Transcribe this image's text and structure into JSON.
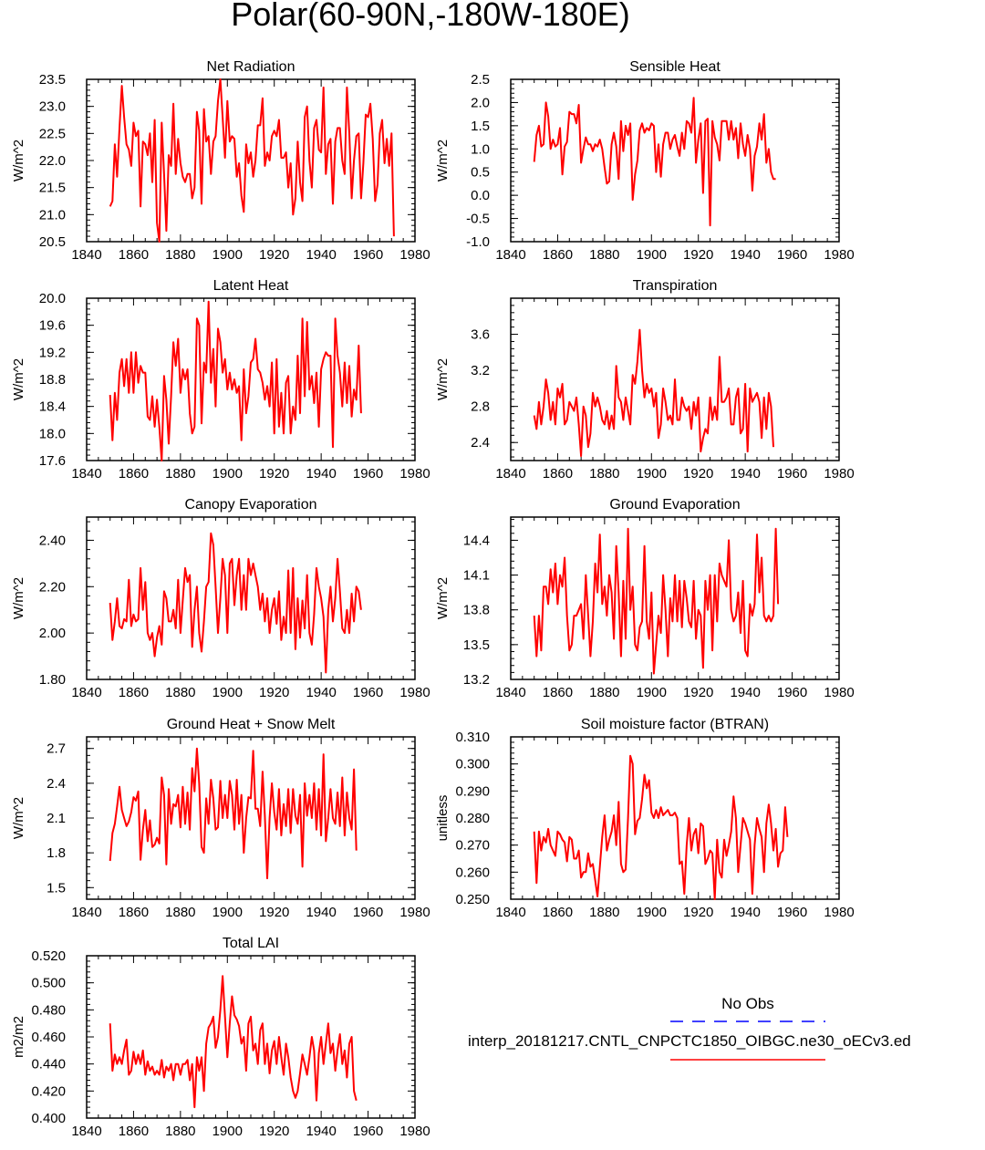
{
  "page_title": "Polar(60-90N,-180W-180E)",
  "colors": {
    "series": "#ff0000",
    "obs": "#0000ff",
    "axis": "#000000"
  },
  "x_ticks": [
    "1840",
    "1860",
    "1880",
    "1900",
    "1920",
    "1940",
    "1960",
    "1980"
  ],
  "legend": {
    "obs_label": "No Obs",
    "model_label": "interp_20181217.CNTL_CNPCTC1850_OIBGC.ne30_oECv3.ed"
  },
  "chart_data": [
    {
      "type": "line",
      "title": "Net Radiation",
      "ylabel": "W/m^2",
      "xlim": [
        1840,
        1980
      ],
      "ylim": [
        20.5,
        23.5
      ],
      "yticks": [
        "20.5",
        "21.0",
        "21.5",
        "22.0",
        "22.5",
        "23.0",
        "23.5"
      ],
      "x_start": 1850,
      "x_step": 1,
      "values": [
        21.15,
        21.25,
        22.3,
        21.7,
        22.6,
        23.38,
        22.8,
        22.3,
        22.2,
        21.9,
        22.7,
        22.45,
        22.55,
        21.15,
        22.35,
        22.3,
        22.1,
        22.5,
        21.6,
        22.75,
        20.85,
        20.5,
        22.7,
        21.75,
        20.7,
        22.1,
        21.9,
        23.05,
        21.75,
        22.4,
        21.95,
        21.7,
        21.6,
        21.75,
        21.75,
        21.3,
        21.5,
        22.9,
        22.55,
        21.2,
        22.95,
        22.35,
        22.45,
        21.75,
        22.35,
        22.45,
        23.1,
        23.5,
        22.8,
        22.05,
        23.1,
        22.35,
        22.45,
        22.4,
        21.7,
        21.95,
        21.35,
        21.05,
        22.3,
        21.95,
        22.15,
        21.7,
        22.0,
        22.65,
        22.65,
        23.15,
        21.9,
        22.15,
        22.0,
        22.45,
        22.55,
        22.45,
        22.75,
        22.05,
        22.05,
        22.15,
        21.5,
        21.95,
        21.0,
        21.3,
        22.35,
        21.6,
        21.25,
        22.8,
        23.0,
        22.0,
        21.5,
        22.6,
        22.75,
        22.2,
        22.15,
        23.35,
        21.75,
        22.3,
        22.4,
        21.2,
        22.35,
        22.6,
        22.6,
        22.0,
        21.75,
        23.35,
        22.5,
        21.3,
        22.0,
        22.45,
        22.5,
        21.3,
        21.95,
        22.85,
        22.8,
        23.05,
        22.4,
        21.25,
        21.55,
        22.5,
        22.75,
        21.95,
        22.4,
        21.9,
        22.5,
        20.6
      ]
    },
    {
      "type": "line",
      "title": "Sensible Heat",
      "ylabel": "W/m^2",
      "xlim": [
        1840,
        1980
      ],
      "ylim": [
        -1.0,
        2.5
      ],
      "yticks": [
        "-1.0",
        "-0.5",
        "0.0",
        "0.5",
        "1.0",
        "1.5",
        "2.0",
        "2.5"
      ],
      "x_start": 1850,
      "x_step": 1,
      "values": [
        0.72,
        1.3,
        1.5,
        1.05,
        1.1,
        2.0,
        1.7,
        1.0,
        1.2,
        1.05,
        1.1,
        1.45,
        0.45,
        1.05,
        1.15,
        1.8,
        1.75,
        1.75,
        1.55,
        1.95,
        0.7,
        1.0,
        1.25,
        1.1,
        1.1,
        0.95,
        1.1,
        1.05,
        1.2,
        1.0,
        0.6,
        0.25,
        0.3,
        1.1,
        1.35,
        1.05,
        0.35,
        1.6,
        0.95,
        1.5,
        1.3,
        1.55,
        -0.1,
        0.45,
        0.75,
        1.4,
        1.55,
        1.35,
        1.45,
        1.4,
        1.55,
        1.5,
        0.5,
        1.1,
        0.4,
        1.1,
        1.35,
        1.35,
        1.0,
        1.2,
        1.3,
        1.05,
        0.85,
        1.35,
        1.0,
        1.6,
        1.55,
        1.35,
        2.1,
        0.7,
        1.2,
        1.55,
        0.05,
        1.6,
        1.65,
        -0.65,
        1.6,
        1.25,
        1.1,
        0.75,
        1.6,
        1.6,
        1.6,
        1.2,
        1.6,
        1.2,
        1.45,
        0.8,
        1.55,
        1.1,
        0.85,
        1.3,
        1.0,
        0.1,
        0.85,
        1.05,
        1.55,
        1.2,
        1.75,
        0.7,
        1.0,
        0.5,
        0.35,
        0.35
      ]
    },
    {
      "type": "line",
      "title": "Latent Heat",
      "ylabel": "W/m^2",
      "xlim": [
        1840,
        1980
      ],
      "ylim": [
        17.6,
        20.0
      ],
      "yticks": [
        "17.6",
        "18.0",
        "18.4",
        "18.8",
        "19.2",
        "19.6",
        "20.0"
      ],
      "x_start": 1850,
      "x_step": 1,
      "values": [
        18.57,
        17.9,
        18.6,
        18.2,
        18.9,
        19.1,
        18.7,
        19.1,
        18.6,
        19.2,
        18.6,
        19.2,
        18.75,
        19.0,
        18.9,
        18.9,
        18.25,
        18.2,
        18.55,
        18.1,
        18.5,
        18.1,
        17.6,
        18.85,
        18.5,
        17.85,
        18.55,
        19.35,
        19.0,
        19.4,
        18.6,
        18.95,
        18.8,
        18.95,
        18.3,
        18.0,
        18.1,
        19.7,
        19.6,
        18.15,
        19.05,
        18.9,
        19.95,
        18.75,
        19.25,
        18.4,
        19.55,
        19.35,
        18.9,
        19.1,
        18.65,
        18.9,
        18.65,
        18.8,
        18.6,
        18.7,
        17.9,
        18.95,
        18.3,
        18.55,
        19.05,
        19.1,
        19.4,
        18.95,
        18.9,
        18.75,
        18.5,
        18.7,
        18.4,
        19.05,
        18.0,
        19.1,
        18.1,
        18.6,
        18.0,
        18.75,
        18.85,
        18.0,
        18.4,
        18.2,
        19.15,
        18.3,
        19.7,
        18.55,
        19.65,
        18.65,
        18.85,
        18.45,
        18.9,
        18.1,
        18.95,
        19.1,
        19.2,
        19.15,
        19.15,
        17.8,
        19.7,
        19.15,
        18.9,
        18.4,
        19.05,
        18.45,
        19.0,
        18.25,
        18.65,
        18.5,
        19.3,
        18.3
      ]
    },
    {
      "type": "line",
      "title": "Transpiration",
      "ylabel": "W/m^2",
      "xlim": [
        1840,
        1980
      ],
      "ylim": [
        2.2,
        4.0
      ],
      "yticks": [
        "2.4",
        "2.8",
        "3.2",
        "3.6"
      ],
      "x_start": 1850,
      "x_step": 1,
      "values": [
        2.7,
        2.55,
        2.85,
        2.6,
        2.8,
        3.1,
        2.95,
        2.65,
        2.85,
        2.6,
        3.0,
        2.9,
        3.05,
        2.6,
        2.65,
        2.85,
        2.8,
        2.75,
        2.9,
        2.6,
        2.25,
        2.8,
        2.7,
        2.35,
        2.5,
        2.95,
        2.8,
        2.9,
        2.8,
        2.65,
        2.6,
        2.75,
        2.55,
        2.7,
        2.55,
        3.25,
        2.9,
        2.85,
        2.65,
        2.9,
        2.75,
        2.6,
        3.15,
        3.05,
        3.3,
        3.65,
        3.2,
        2.9,
        3.05,
        2.95,
        3.0,
        2.8,
        2.95,
        2.45,
        2.6,
        3.0,
        2.85,
        2.65,
        2.7,
        2.6,
        3.1,
        2.65,
        2.65,
        2.9,
        2.8,
        2.75,
        2.8,
        2.55,
        2.85,
        2.7,
        2.9,
        2.3,
        2.45,
        2.55,
        2.5,
        2.9,
        2.65,
        2.8,
        2.65,
        3.35,
        2.85,
        2.85,
        2.9,
        3.0,
        2.6,
        2.6,
        2.9,
        3.0,
        2.5,
        2.55,
        3.05,
        2.3,
        3.0,
        2.85,
        2.9,
        2.95,
        2.85,
        2.45,
        2.9,
        2.55,
        2.95,
        2.8,
        2.35
      ]
    },
    {
      "type": "line",
      "title": "Canopy Evaporation",
      "ylabel": "W/m^2",
      "xlim": [
        1840,
        1980
      ],
      "ylim": [
        1.8,
        2.5
      ],
      "yticks": [
        "1.80",
        "2.00",
        "2.20",
        "2.40"
      ],
      "x_start": 1850,
      "x_step": 1,
      "values": [
        2.13,
        1.97,
        2.05,
        2.15,
        2.03,
        2.02,
        2.06,
        2.05,
        2.23,
        2.03,
        2.08,
        2.05,
        2.06,
        2.28,
        2.1,
        2.22,
        2.0,
        1.97,
        2.0,
        1.9,
        1.98,
        2.03,
        1.95,
        2.18,
        2.15,
        2.05,
        2.05,
        2.1,
        2.02,
        2.23,
        2.0,
        2.14,
        2.28,
        2.22,
        2.25,
        1.94,
        2.1,
        2.2,
        2.0,
        1.92,
        2.05,
        2.2,
        2.22,
        2.43,
        2.38,
        2.2,
        2.0,
        2.15,
        2.32,
        2.25,
        2.0,
        2.3,
        2.32,
        2.12,
        2.25,
        2.32,
        2.1,
        2.25,
        2.1,
        2.32,
        2.25,
        2.3,
        2.25,
        2.2,
        2.1,
        2.17,
        2.05,
        2.15,
        2.0,
        2.1,
        2.15,
        2.04,
        2.18,
        1.97,
        2.07,
        2.0,
        2.27,
        2.0,
        2.28,
        1.93,
        2.15,
        1.98,
        2.14,
        2.02,
        2.25,
        2.0,
        1.95,
        2.08,
        2.28,
        2.2,
        2.15,
        2.07,
        1.83,
        2.1,
        2.2,
        2.05,
        2.15,
        2.32,
        2.18,
        2.02,
        2.0,
        2.1,
        2.0,
        2.17,
        2.05,
        2.2,
        2.18,
        2.1
      ]
    },
    {
      "type": "line",
      "title": "Ground Evaporation",
      "ylabel": "W/m^2",
      "xlim": [
        1840,
        1980
      ],
      "ylim": [
        13.2,
        14.6
      ],
      "yticks": [
        "13.2",
        "13.5",
        "13.8",
        "14.1",
        "14.4"
      ],
      "x_start": 1850,
      "x_step": 1,
      "values": [
        13.75,
        13.4,
        13.75,
        13.45,
        14.0,
        14.0,
        13.85,
        14.15,
        13.95,
        14.2,
        13.85,
        14.1,
        14.0,
        14.25,
        13.75,
        13.45,
        13.5,
        13.75,
        13.75,
        13.8,
        13.85,
        13.55,
        14.1,
        13.75,
        13.4,
        13.7,
        14.2,
        13.95,
        14.45,
        13.85,
        14.0,
        13.75,
        14.1,
        13.95,
        13.55,
        14.35,
        13.95,
        13.4,
        14.05,
        13.55,
        14.5,
        13.8,
        14.0,
        13.5,
        13.45,
        13.65,
        13.7,
        14.35,
        13.7,
        13.55,
        13.95,
        13.25,
        13.5,
        13.75,
        13.6,
        14.1,
        13.8,
        13.4,
        13.9,
        13.7,
        14.1,
        13.7,
        14.05,
        13.65,
        14.05,
        13.9,
        13.7,
        13.65,
        14.05,
        13.55,
        13.8,
        13.75,
        13.3,
        14.05,
        13.8,
        14.1,
        13.45,
        14.1,
        13.7,
        14.2,
        14.1,
        14.05,
        14.0,
        14.4,
        13.8,
        13.7,
        13.75,
        13.95,
        13.6,
        14.05,
        13.45,
        13.4,
        13.85,
        13.75,
        13.85,
        14.45,
        13.95,
        14.25,
        13.75,
        13.7,
        13.75,
        13.7,
        13.75,
        14.5,
        13.85
      ]
    },
    {
      "type": "line",
      "title": "Ground Heat + Snow Melt",
      "ylabel": "W/m^2",
      "xlim": [
        1840,
        1980
      ],
      "ylim": [
        1.4,
        2.8
      ],
      "yticks": [
        "1.5",
        "1.8",
        "2.1",
        "2.4",
        "2.7"
      ],
      "x_start": 1850,
      "x_step": 1,
      "values": [
        1.73,
        1.97,
        2.05,
        2.2,
        2.37,
        2.17,
        2.1,
        2.03,
        2.07,
        2.15,
        2.28,
        2.25,
        2.33,
        1.74,
        2.0,
        2.17,
        1.9,
        2.08,
        1.85,
        1.87,
        1.93,
        1.88,
        2.45,
        2.3,
        1.7,
        2.35,
        2.05,
        2.22,
        2.2,
        2.3,
        2.02,
        2.37,
        2.05,
        2.32,
        2.0,
        2.53,
        2.33,
        2.7,
        2.4,
        1.85,
        1.8,
        2.27,
        2.05,
        2.43,
        2.27,
        2.0,
        2.02,
        2.42,
        2.1,
        2.3,
        2.1,
        2.42,
        2.3,
        2.0,
        2.43,
        2.05,
        2.3,
        1.8,
        2.1,
        2.28,
        2.27,
        2.68,
        2.18,
        2.18,
        2.03,
        2.5,
        2.12,
        1.58,
        2.1,
        2.4,
        2.15,
        2.0,
        2.35,
        1.95,
        2.22,
        2.03,
        2.35,
        1.97,
        2.35,
        2.12,
        2.05,
        2.3,
        1.68,
        2.4,
        2.12,
        2.3,
        2.1,
        2.4,
        2.0,
        2.35,
        1.95,
        2.65,
        1.9,
        2.1,
        2.35,
        2.1,
        2.05,
        2.32,
        2.03,
        2.45,
        1.95,
        2.32,
        2.1,
        2.0,
        2.52,
        1.82
      ]
    },
    {
      "type": "line",
      "title": "Soil moisture factor (BTRAN)",
      "ylabel": "unitless",
      "xlim": [
        1840,
        1980
      ],
      "ylim": [
        0.25,
        0.31
      ],
      "yticks": [
        "0.250",
        "0.260",
        "0.270",
        "0.280",
        "0.290",
        "0.300",
        "0.310"
      ],
      "x_start": 1850,
      "x_step": 1,
      "values": [
        0.275,
        0.256,
        0.275,
        0.268,
        0.273,
        0.271,
        0.276,
        0.27,
        0.268,
        0.266,
        0.275,
        0.274,
        0.272,
        0.271,
        0.264,
        0.273,
        0.272,
        0.265,
        0.265,
        0.268,
        0.258,
        0.26,
        0.26,
        0.267,
        0.262,
        0.263,
        0.257,
        0.251,
        0.262,
        0.273,
        0.281,
        0.268,
        0.272,
        0.275,
        0.281,
        0.27,
        0.286,
        0.263,
        0.26,
        0.261,
        0.28,
        0.303,
        0.3,
        0.274,
        0.279,
        0.28,
        0.287,
        0.296,
        0.291,
        0.294,
        0.282,
        0.28,
        0.283,
        0.28,
        0.284,
        0.281,
        0.282,
        0.283,
        0.281,
        0.281,
        0.282,
        0.28,
        0.263,
        0.264,
        0.252,
        0.27,
        0.28,
        0.268,
        0.274,
        0.276,
        0.267,
        0.278,
        0.277,
        0.263,
        0.265,
        0.268,
        0.267,
        0.25,
        0.272,
        0.26,
        0.258,
        0.272,
        0.266,
        0.27,
        0.275,
        0.288,
        0.28,
        0.26,
        0.27,
        0.28,
        0.278,
        0.275,
        0.272,
        0.252,
        0.27,
        0.28,
        0.276,
        0.273,
        0.26,
        0.278,
        0.285,
        0.278,
        0.268,
        0.276,
        0.262,
        0.267,
        0.268,
        0.284,
        0.273
      ]
    },
    {
      "type": "line",
      "title": "Total LAI",
      "ylabel": "m2/m2",
      "xlim": [
        1840,
        1980
      ],
      "ylim": [
        0.4,
        0.52
      ],
      "yticks": [
        "0.400",
        "0.420",
        "0.440",
        "0.460",
        "0.480",
        "0.500",
        "0.520"
      ],
      "x_start": 1850,
      "x_step": 1,
      "values": [
        0.47,
        0.435,
        0.447,
        0.44,
        0.445,
        0.44,
        0.45,
        0.458,
        0.432,
        0.435,
        0.449,
        0.44,
        0.447,
        0.44,
        0.45,
        0.432,
        0.442,
        0.435,
        0.438,
        0.432,
        0.435,
        0.432,
        0.443,
        0.43,
        0.438,
        0.435,
        0.44,
        0.428,
        0.44,
        0.44,
        0.432,
        0.44,
        0.44,
        0.443,
        0.428,
        0.44,
        0.408,
        0.445,
        0.435,
        0.445,
        0.42,
        0.455,
        0.467,
        0.47,
        0.475,
        0.452,
        0.46,
        0.48,
        0.505,
        0.475,
        0.445,
        0.47,
        0.49,
        0.476,
        0.473,
        0.468,
        0.455,
        0.46,
        0.435,
        0.47,
        0.475,
        0.45,
        0.455,
        0.44,
        0.465,
        0.47,
        0.44,
        0.455,
        0.433,
        0.45,
        0.457,
        0.44,
        0.46,
        0.445,
        0.432,
        0.455,
        0.445,
        0.43,
        0.42,
        0.415,
        0.42,
        0.433,
        0.447,
        0.44,
        0.432,
        0.445,
        0.46,
        0.45,
        0.413,
        0.448,
        0.46,
        0.44,
        0.455,
        0.47,
        0.448,
        0.455,
        0.435,
        0.45,
        0.462,
        0.44,
        0.45,
        0.43,
        0.455,
        0.46,
        0.42,
        0.413
      ]
    }
  ]
}
